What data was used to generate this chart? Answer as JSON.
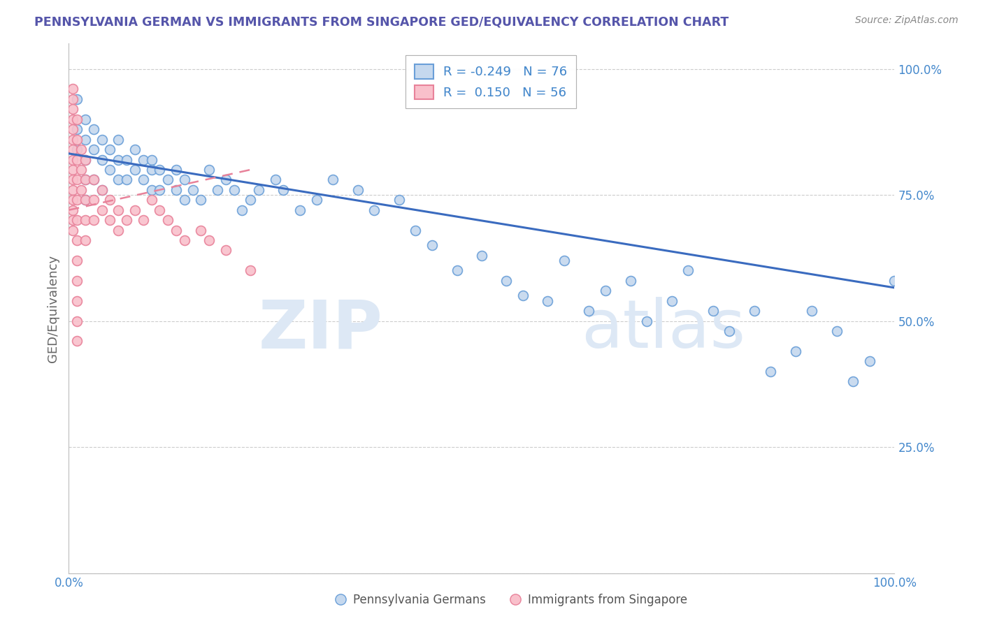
{
  "title": "PENNSYLVANIA GERMAN VS IMMIGRANTS FROM SINGAPORE GED/EQUIVALENCY CORRELATION CHART",
  "source": "Source: ZipAtlas.com",
  "ylabel": "GED/Equivalency",
  "blue_R": "-0.249",
  "blue_N": "76",
  "pink_R": "0.150",
  "pink_N": "56",
  "legend_labels": [
    "Pennsylvania Germans",
    "Immigrants from Singapore"
  ],
  "blue_color": "#c5d8ee",
  "pink_color": "#f9c0cb",
  "blue_edge_color": "#6a9fd8",
  "pink_edge_color": "#e8829a",
  "blue_line_color": "#3a6bbf",
  "pink_line_color": "#d44060",
  "title_color": "#5555aa",
  "axis_label_color": "#4488cc",
  "watermark_color": "#dde8f5",
  "blue_scatter_x": [
    0.01,
    0.01,
    0.01,
    0.02,
    0.02,
    0.02,
    0.02,
    0.02,
    0.03,
    0.03,
    0.03,
    0.04,
    0.04,
    0.04,
    0.05,
    0.05,
    0.06,
    0.06,
    0.06,
    0.07,
    0.07,
    0.08,
    0.08,
    0.09,
    0.09,
    0.1,
    0.1,
    0.1,
    0.11,
    0.11,
    0.12,
    0.13,
    0.13,
    0.14,
    0.14,
    0.15,
    0.16,
    0.17,
    0.18,
    0.19,
    0.2,
    0.21,
    0.22,
    0.23,
    0.25,
    0.26,
    0.28,
    0.3,
    0.32,
    0.35,
    0.37,
    0.4,
    0.42,
    0.44,
    0.47,
    0.5,
    0.53,
    0.55,
    0.58,
    0.6,
    0.63,
    0.65,
    0.68,
    0.7,
    0.73,
    0.75,
    0.78,
    0.8,
    0.83,
    0.85,
    0.88,
    0.9,
    0.93,
    0.95,
    0.97,
    1.0
  ],
  "blue_scatter_y": [
    0.94,
    0.88,
    0.84,
    0.9,
    0.86,
    0.82,
    0.78,
    0.74,
    0.88,
    0.84,
    0.78,
    0.86,
    0.82,
    0.76,
    0.84,
    0.8,
    0.86,
    0.82,
    0.78,
    0.82,
    0.78,
    0.84,
    0.8,
    0.82,
    0.78,
    0.82,
    0.8,
    0.76,
    0.8,
    0.76,
    0.78,
    0.8,
    0.76,
    0.78,
    0.74,
    0.76,
    0.74,
    0.8,
    0.76,
    0.78,
    0.76,
    0.72,
    0.74,
    0.76,
    0.78,
    0.76,
    0.72,
    0.74,
    0.78,
    0.76,
    0.72,
    0.74,
    0.68,
    0.65,
    0.6,
    0.63,
    0.58,
    0.55,
    0.54,
    0.62,
    0.52,
    0.56,
    0.58,
    0.5,
    0.54,
    0.6,
    0.52,
    0.48,
    0.52,
    0.4,
    0.44,
    0.52,
    0.48,
    0.38,
    0.42,
    0.58
  ],
  "pink_scatter_x": [
    0.005,
    0.005,
    0.005,
    0.005,
    0.005,
    0.005,
    0.005,
    0.005,
    0.005,
    0.005,
    0.005,
    0.005,
    0.005,
    0.005,
    0.005,
    0.01,
    0.01,
    0.01,
    0.01,
    0.01,
    0.01,
    0.01,
    0.01,
    0.01,
    0.01,
    0.01,
    0.01,
    0.015,
    0.015,
    0.015,
    0.02,
    0.02,
    0.02,
    0.02,
    0.02,
    0.03,
    0.03,
    0.03,
    0.04,
    0.04,
    0.05,
    0.05,
    0.06,
    0.06,
    0.07,
    0.08,
    0.09,
    0.1,
    0.11,
    0.12,
    0.13,
    0.14,
    0.16,
    0.17,
    0.19,
    0.22
  ],
  "pink_scatter_y": [
    0.96,
    0.94,
    0.92,
    0.9,
    0.88,
    0.86,
    0.84,
    0.82,
    0.8,
    0.78,
    0.76,
    0.74,
    0.72,
    0.7,
    0.68,
    0.9,
    0.86,
    0.82,
    0.78,
    0.74,
    0.7,
    0.66,
    0.62,
    0.58,
    0.54,
    0.5,
    0.46,
    0.84,
    0.8,
    0.76,
    0.82,
    0.78,
    0.74,
    0.7,
    0.66,
    0.78,
    0.74,
    0.7,
    0.76,
    0.72,
    0.74,
    0.7,
    0.72,
    0.68,
    0.7,
    0.72,
    0.7,
    0.74,
    0.72,
    0.7,
    0.68,
    0.66,
    0.68,
    0.66,
    0.64,
    0.6
  ],
  "blue_trendline_x": [
    0.0,
    1.0
  ],
  "blue_trendline_y": [
    0.832,
    0.566
  ],
  "pink_trendline_x": [
    0.0,
    0.22
  ],
  "pink_trendline_y": [
    0.72,
    0.8
  ],
  "pink_trendline_dash": [
    6,
    4
  ],
  "xlim": [
    0.0,
    1.0
  ],
  "ylim": [
    0.0,
    1.05
  ],
  "yticks": [
    0.0,
    0.25,
    0.5,
    0.75,
    1.0
  ],
  "ytick_labels": [
    "",
    "25.0%",
    "50.0%",
    "75.0%",
    "100.0%"
  ],
  "xtick_labels": [
    "0.0%",
    "100.0%"
  ],
  "grid_color": "#cccccc",
  "bg_color": "#ffffff",
  "marker_size": 100,
  "marker_linewidth": 1.2
}
